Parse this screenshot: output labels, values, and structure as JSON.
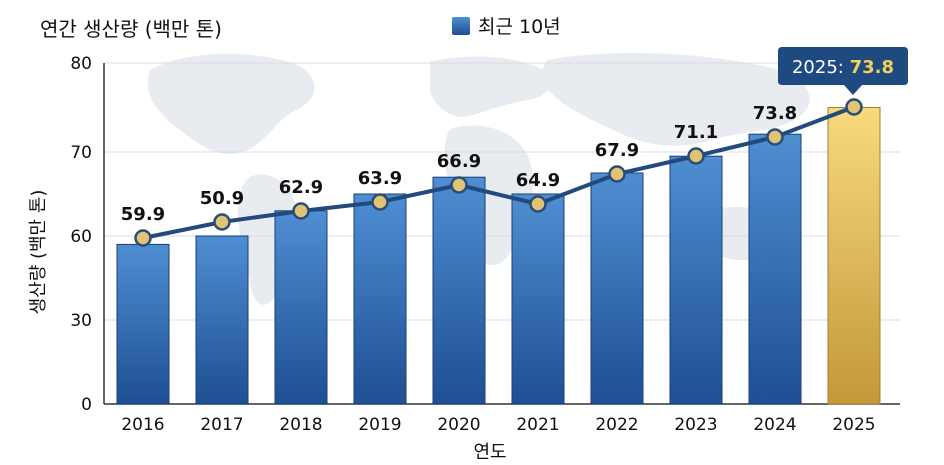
{
  "colors": {
    "bar_top": "#4f8ed2",
    "bar_bottom": "#1e4f92",
    "bar_highlight_top": "#f7da7e",
    "bar_highlight_bottom": "#c4973b",
    "line": "#234a7c",
    "marker_fill": "#e2c374",
    "marker_stroke": "#2a4d78",
    "grid": "#d9dde3",
    "map": "#e8ebef",
    "callout_bg": "#1f4a80",
    "callout_value": "#f4cf5c",
    "text": "#111111"
  },
  "chart_data": {
    "type": "bar+line",
    "title": "연간 생산량 (백만 톤)",
    "xlabel": "연도",
    "ylabel": "생산량 (백만 톤)",
    "yticks": [
      "0",
      "30",
      "60",
      "70",
      "80"
    ],
    "legend": {
      "label": "최근 10년",
      "position": "top-center"
    },
    "grid": true,
    "categories": [
      "2016",
      "2017",
      "2018",
      "2019",
      "2020",
      "2021",
      "2022",
      "2023",
      "2024",
      "2025"
    ],
    "bar_values": [
      57,
      60,
      63,
      65,
      67,
      65,
      67.5,
      69.5,
      72,
      75
    ],
    "line_values": [
      59.9,
      50.9,
      62.9,
      63.9,
      66.9,
      64.9,
      67.9,
      71.1,
      73.8,
      73.8
    ],
    "line_labels": [
      "59.9",
      "50.9",
      "62.9",
      "63.9",
      "66.9",
      "64.9",
      "67.9",
      "71.1",
      "73.8"
    ],
    "highlight_index": 9,
    "callout": {
      "year": "2025:",
      "value": "73.8"
    }
  }
}
